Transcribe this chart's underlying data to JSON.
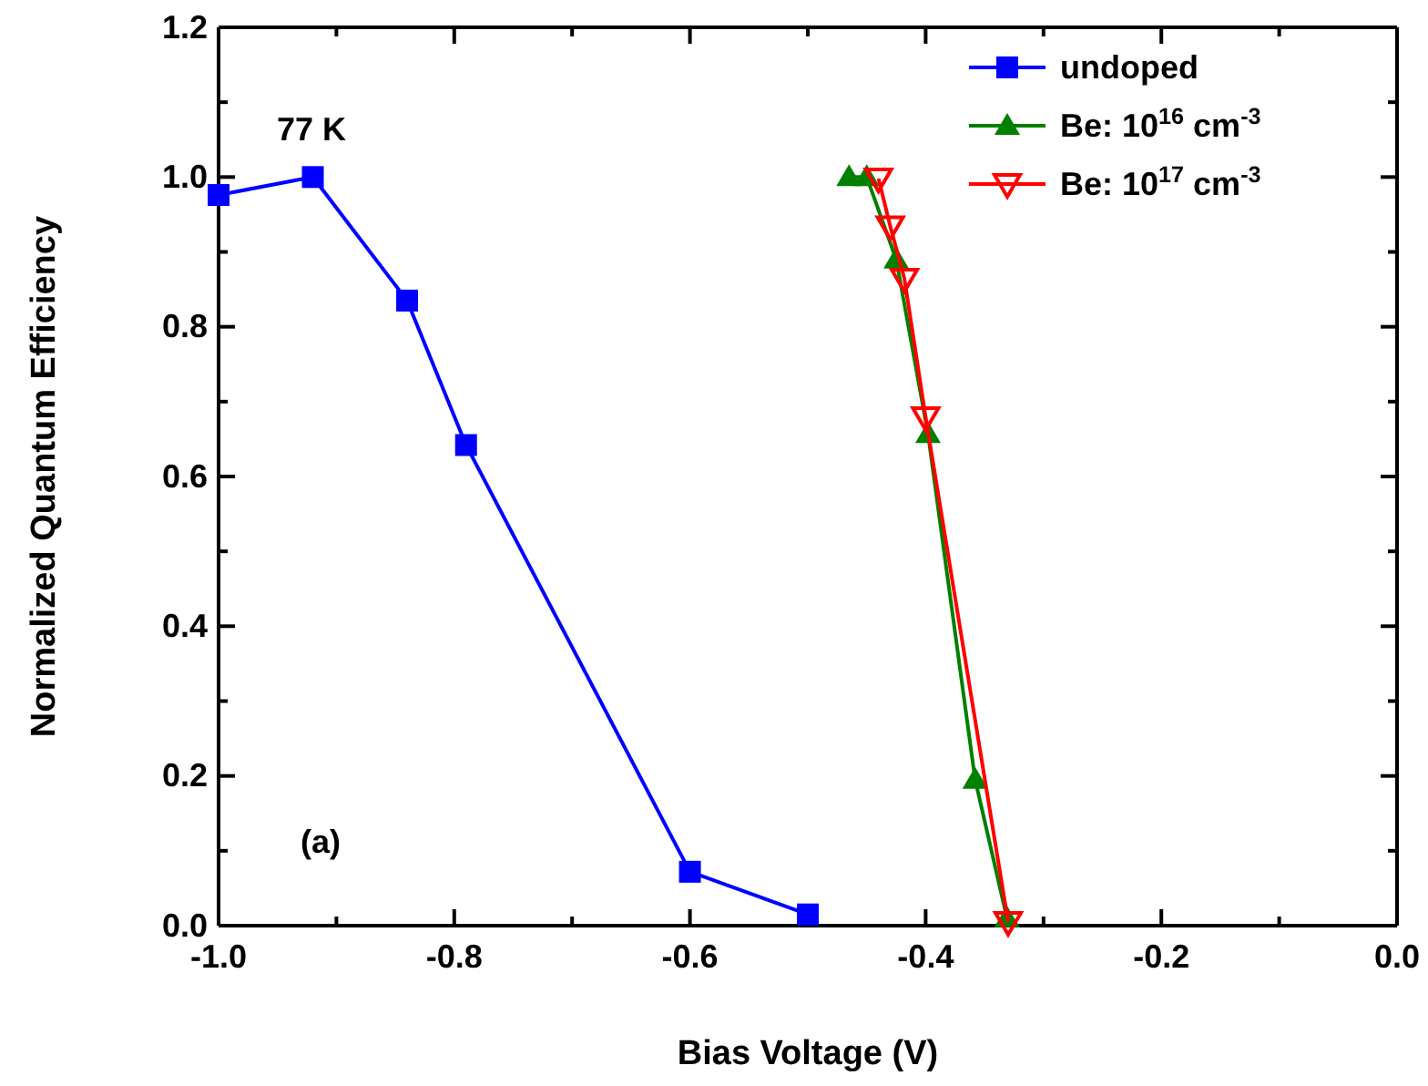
{
  "chart_data": {
    "type": "line",
    "xlabel": "Bias Voltage (V)",
    "ylabel": "Normalized Quantum Efficiency",
    "xlim": [
      -1.0,
      0.0
    ],
    "xticks": [
      {
        "value": -1.0,
        "label": "-1.0"
      },
      {
        "value": -0.9,
        "label": null
      },
      {
        "value": -0.8,
        "label": "-0.8"
      },
      {
        "value": -0.7,
        "label": null
      },
      {
        "value": -0.6,
        "label": "-0.6"
      },
      {
        "value": -0.5,
        "label": null
      },
      {
        "value": -0.4,
        "label": "-0.4"
      },
      {
        "value": -0.3,
        "label": null
      },
      {
        "value": -0.2,
        "label": "-0.2"
      },
      {
        "value": -0.1,
        "label": null
      },
      {
        "value": 0.0,
        "label": "0.0"
      }
    ],
    "ylim": [
      0.0,
      1.2
    ],
    "yticks": [
      {
        "value": 0.0,
        "label": "0.0"
      },
      {
        "value": 0.1,
        "label": null
      },
      {
        "value": 0.2,
        "label": "0.2"
      },
      {
        "value": 0.3,
        "label": null
      },
      {
        "value": 0.4,
        "label": "0.4"
      },
      {
        "value": 0.5,
        "label": null
      },
      {
        "value": 0.6,
        "label": "0.6"
      },
      {
        "value": 0.7,
        "label": null
      },
      {
        "value": 0.8,
        "label": "0.8"
      },
      {
        "value": 0.9,
        "label": null
      },
      {
        "value": 1.0,
        "label": "1.0"
      },
      {
        "value": 1.1,
        "label": null
      },
      {
        "value": 1.2,
        "label": "1.2"
      }
    ],
    "grid": false,
    "legend": "top right",
    "line_style": "solid",
    "annotations": [
      "77 K",
      "(a)"
    ],
    "series": [
      {
        "name": "undoped",
        "color": "#0000ff",
        "marker": "square",
        "x": [
          -1.0,
          -0.92,
          -0.84,
          -0.79,
          -0.6,
          -0.5
        ],
        "values": [
          0.976,
          1.0,
          0.835,
          0.642,
          0.072,
          0.015
        ]
      },
      {
        "name": "Be: 10$^{16}$ cm$^{-3}$",
        "color": "#008000",
        "marker": "triangle",
        "x": [
          -0.465,
          -0.45,
          -0.425,
          -0.398,
          -0.358,
          -0.331
        ],
        "values": [
          1.0,
          1.0,
          0.89,
          0.657,
          0.195,
          0.01
        ]
      },
      {
        "name": "Be: 10$^{17}$ cm$^{-3}$",
        "color": "#ff0000",
        "marker": "triangle-down-open",
        "x": [
          -0.44,
          -0.43,
          -0.418,
          -0.4,
          -0.33
        ],
        "values": [
          0.998,
          0.934,
          0.864,
          0.679,
          0.005
        ]
      }
    ]
  }
}
